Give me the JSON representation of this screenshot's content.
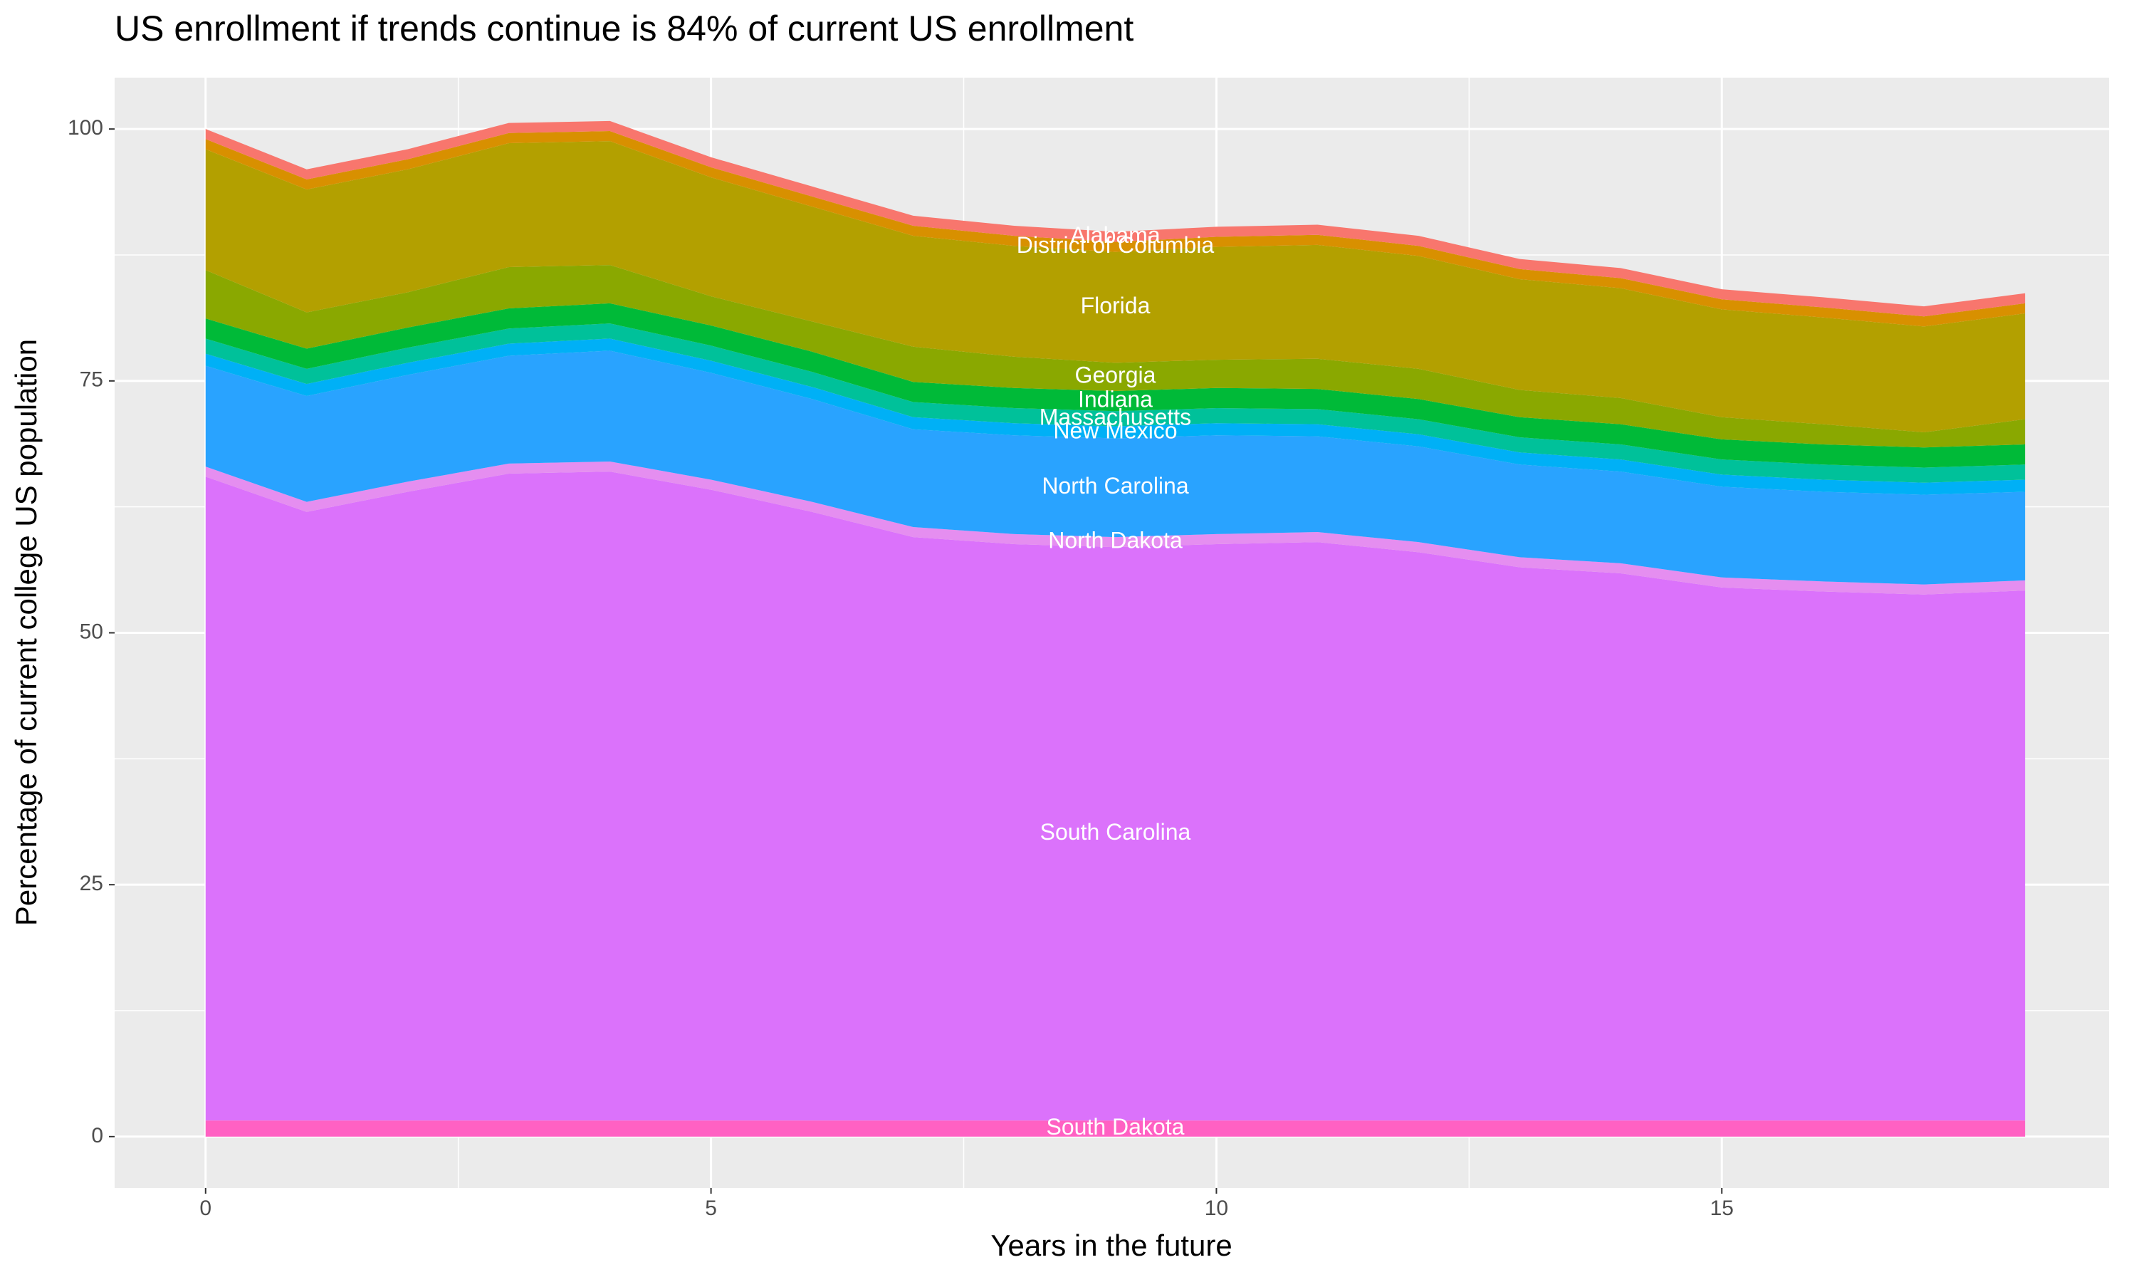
{
  "chart_data": {
    "type": "area",
    "stacked": true,
    "title": "US enrollment if trends continue is 84% of current US enrollment",
    "x_label": "Years in the future",
    "y_label": "Percentage of current college US population",
    "x": [
      0,
      1,
      2,
      3,
      4,
      5,
      6,
      7,
      8,
      9,
      10,
      11,
      12,
      13,
      14,
      15,
      16,
      17,
      18
    ],
    "xlim": [
      -0.9,
      18.83
    ],
    "xticks": [
      0,
      5,
      10,
      15
    ],
    "ylim": [
      -5.1,
      105.1
    ],
    "yticks": [
      0,
      25,
      50,
      75,
      100
    ],
    "grid": true,
    "series": [
      {
        "name": "South Dakota",
        "color": "#ff61c3",
        "values": [
          1.6,
          1.6,
          1.6,
          1.6,
          1.6,
          1.6,
          1.6,
          1.6,
          1.6,
          1.6,
          1.6,
          1.6,
          1.6,
          1.6,
          1.6,
          1.6,
          1.6,
          1.6,
          1.6
        ]
      },
      {
        "name": "South Carolina",
        "color": "#db72fb",
        "values": [
          63.9,
          60.4,
          62.4,
          64.2,
          64.4,
          62.6,
          60.4,
          57.9,
          57.2,
          56.9,
          57.2,
          57.4,
          56.4,
          54.9,
          54.3,
          52.9,
          52.5,
          52.2,
          52.6
        ]
      },
      {
        "name": "North Dakota",
        "color": "#e58ef0",
        "values": [
          1,
          1,
          1,
          1,
          1,
          1,
          1,
          1,
          1,
          1,
          1,
          1,
          1,
          1,
          1,
          1,
          1,
          1,
          1
        ]
      },
      {
        "name": "North Carolina",
        "color": "#29a3ff",
        "values": [
          10,
          10.5,
          10.6,
          10.7,
          11,
          10.6,
          10.2,
          9.7,
          9.8,
          9.8,
          9.8,
          9.5,
          9.5,
          9.2,
          9.1,
          9,
          8.9,
          8.9,
          8.8
        ]
      },
      {
        "name": "New Mexico",
        "color": "#00b0f6",
        "values": [
          1.2,
          1.2,
          1.2,
          1.2,
          1.2,
          1.2,
          1.2,
          1.2,
          1.2,
          1.2,
          1.2,
          1.2,
          1.2,
          1.2,
          1.2,
          1.2,
          1.2,
          1.2,
          1.2
        ]
      },
      {
        "name": "Massachusetts",
        "color": "#00c19a",
        "values": [
          1.5,
          1.5,
          1.5,
          1.5,
          1.5,
          1.5,
          1.5,
          1.5,
          1.5,
          1.5,
          1.5,
          1.5,
          1.5,
          1.5,
          1.5,
          1.5,
          1.5,
          1.5,
          1.5
        ]
      },
      {
        "name": "Indiana",
        "color": "#00ba38",
        "values": [
          2,
          2,
          2,
          2,
          2,
          2,
          2,
          2,
          2,
          2,
          2,
          2,
          2,
          2,
          2,
          2,
          2,
          2,
          2
        ]
      },
      {
        "name": "Georgia",
        "color": "#8aa800",
        "values": [
          4.8,
          3.6,
          3.5,
          4.1,
          3.8,
          2.9,
          3.0,
          3.5,
          3.1,
          2.8,
          2.8,
          3.0,
          3.0,
          2.7,
          2.6,
          2.2,
          2.0,
          1.5,
          2.5
        ]
      },
      {
        "name": "Florida",
        "color": "#b3a000",
        "values": [
          12,
          12.2,
          12.2,
          12.3,
          12.3,
          11.8,
          11.4,
          11,
          11,
          11,
          11.2,
          11.3,
          11.2,
          11,
          10.9,
          10.7,
          10.6,
          10.5,
          10.5
        ]
      },
      {
        "name": "District of Columbia",
        "color": "#d89000",
        "values": [
          1,
          1,
          1,
          1,
          1,
          1,
          1,
          1,
          1,
          1,
          1,
          1,
          1,
          1,
          1,
          1,
          1,
          1,
          1
        ]
      },
      {
        "name": "Alabama",
        "color": "#f8766d",
        "values": [
          1,
          1,
          1,
          1,
          1,
          1,
          1,
          1,
          1,
          1,
          1,
          1,
          1,
          1,
          1,
          1,
          1,
          1,
          1
        ]
      }
    ]
  }
}
